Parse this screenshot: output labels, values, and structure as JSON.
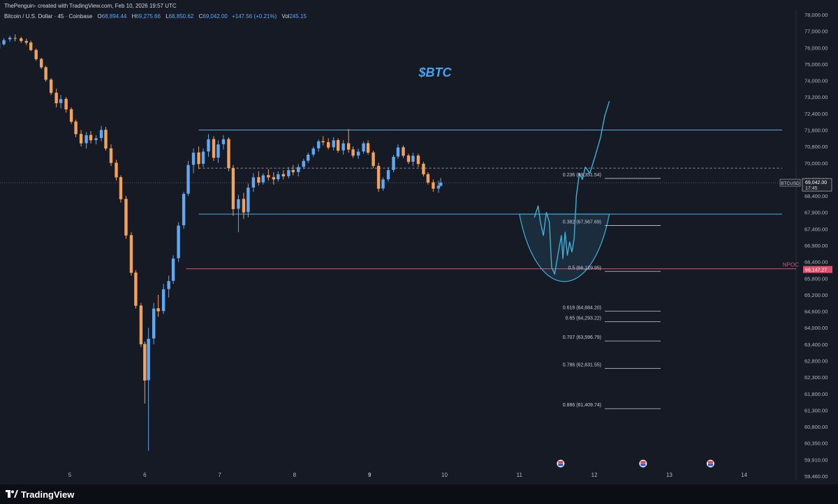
{
  "header": {
    "credit": "ThePenguin- created with TradingView.com, Feb 10, 2026 19:57 UTC",
    "symbol": "Bitcoin / U.S. Dollar · 45 · Coinbase",
    "open_label": "O",
    "open": "68,894.44",
    "high_label": "H",
    "high": "69,275.66",
    "low_label": "L",
    "low": "68,850.62",
    "close_label": "C",
    "close": "69,042.00",
    "change": "+147.56 (+0.21%)",
    "vol_label": "Vol",
    "vol": "245.15"
  },
  "footer": {
    "brand": "TradingView",
    "logo_icon": "tradingview-logo-icon"
  },
  "colors": {
    "background": "#161a25",
    "bull": "#5fa8f3",
    "bear": "#f2a25c",
    "range_line": "#5aa9d6",
    "npoc": "#e0506a",
    "fib_line": "#c9ccd4",
    "projection": "#3fb0d8",
    "title": "#4aa3f0"
  },
  "chart_data": {
    "type": "candlestick",
    "title": "$BTC",
    "timeframe": "45",
    "x_ticks": [
      "5",
      "6",
      "7",
      "8",
      "9",
      "10",
      "11",
      "12",
      "13",
      "14"
    ],
    "y_ticks": [
      "78,000.00",
      "77,000.00",
      "76,000.00",
      "75,000.00",
      "74,000.00",
      "73,200.00",
      "72,400.00",
      "71,600.00",
      "70,800.00",
      "70,000.00",
      "69,200.00",
      "68,400.00",
      "67,900.00",
      "67,400.00",
      "66,900.00",
      "66,400.00",
      "65,800.00",
      "65,200.00",
      "64,600.00",
      "64,000.00",
      "63,400.00",
      "62,800.00",
      "62,300.00",
      "61,800.00",
      "61,300.00",
      "60,800.00",
      "60,350.00",
      "59,910.00",
      "59,460.00"
    ],
    "ylim": [
      59000,
      78000
    ],
    "candles_xrange": [
      4.05,
      9.95
    ],
    "candles": [
      [
        4.05,
        75930,
        76380,
        75850,
        76300
      ],
      [
        4.12,
        76200,
        76570,
        76120,
        76450
      ],
      [
        4.2,
        76500,
        76710,
        76350,
        76600
      ],
      [
        4.27,
        76580,
        76800,
        76380,
        76560
      ],
      [
        4.35,
        76560,
        76660,
        76280,
        76400
      ],
      [
        4.42,
        76400,
        76540,
        76150,
        76300
      ],
      [
        4.48,
        76310,
        76420,
        75780,
        75850
      ],
      [
        4.55,
        75860,
        75940,
        75200,
        75300
      ],
      [
        4.62,
        75310,
        75380,
        74700,
        74800
      ],
      [
        4.68,
        74810,
        74900,
        73950,
        74050
      ],
      [
        4.75,
        74060,
        74150,
        73300,
        73400
      ],
      [
        4.82,
        73410,
        73600,
        72700,
        72900
      ],
      [
        4.88,
        72910,
        73300,
        72650,
        73100
      ],
      [
        4.95,
        73110,
        73200,
        72450,
        72600
      ],
      [
        5.02,
        72610,
        72700,
        71900,
        72000
      ],
      [
        5.08,
        72010,
        72100,
        71250,
        71400
      ],
      [
        5.15,
        71410,
        71600,
        70800,
        70950
      ],
      [
        5.22,
        70960,
        71500,
        70700,
        71350
      ],
      [
        5.28,
        71360,
        71550,
        70950,
        71100
      ],
      [
        5.35,
        71110,
        71350,
        70900,
        71200
      ],
      [
        5.42,
        71210,
        71800,
        71050,
        71600
      ],
      [
        5.48,
        71610,
        71750,
        70600,
        70700
      ],
      [
        5.55,
        70710,
        70900,
        69850,
        70000
      ],
      [
        5.62,
        70010,
        70150,
        69150,
        69300
      ],
      [
        5.68,
        69310,
        69400,
        68200,
        68300
      ],
      [
        5.75,
        68310,
        68400,
        67100,
        67200
      ],
      [
        5.82,
        67210,
        67300,
        65900,
        66000
      ],
      [
        5.88,
        66010,
        66100,
        64700,
        64800
      ],
      [
        5.95,
        64810,
        64900,
        63300,
        63400
      ],
      [
        6.0,
        63410,
        63500,
        61500,
        62200
      ],
      [
        6.05,
        62210,
        64000,
        60150,
        63600
      ],
      [
        6.12,
        63610,
        64900,
        63400,
        64700
      ],
      [
        6.18,
        64710,
        65200,
        64400,
        64600
      ],
      [
        6.25,
        64610,
        65600,
        64500,
        65400
      ],
      [
        6.32,
        65410,
        65900,
        65100,
        65700
      ],
      [
        6.38,
        65710,
        66600,
        65600,
        66500
      ],
      [
        6.45,
        66510,
        67600,
        66400,
        67500
      ],
      [
        6.52,
        67510,
        68600,
        67400,
        68500
      ],
      [
        6.58,
        68510,
        70100,
        68400,
        69900
      ],
      [
        6.65,
        69910,
        70700,
        69500,
        70500
      ],
      [
        6.72,
        70510,
        70800,
        69700,
        69950
      ],
      [
        6.78,
        69960,
        70700,
        69800,
        70550
      ],
      [
        6.85,
        70560,
        71400,
        70300,
        71150
      ],
      [
        6.92,
        71160,
        71300,
        70100,
        70250
      ],
      [
        6.98,
        70260,
        71100,
        70000,
        70900
      ],
      [
        7.05,
        70910,
        71350,
        70650,
        71150
      ],
      [
        7.12,
        71160,
        71250,
        69600,
        69750
      ],
      [
        7.18,
        69760,
        69900,
        67800,
        68000
      ],
      [
        7.25,
        68010,
        68450,
        67300,
        68300
      ],
      [
        7.32,
        68310,
        68550,
        67700,
        67900
      ],
      [
        7.38,
        67910,
        69000,
        67750,
        68800
      ],
      [
        7.45,
        68810,
        69500,
        68600,
        69300
      ],
      [
        7.52,
        69310,
        69600,
        68900,
        69050
      ],
      [
        7.58,
        69060,
        69500,
        68950,
        69400
      ],
      [
        7.65,
        69410,
        69700,
        69150,
        69300
      ],
      [
        7.72,
        69310,
        69550,
        68950,
        69200
      ],
      [
        7.78,
        69210,
        69600,
        69100,
        69450
      ],
      [
        7.85,
        69460,
        69650,
        69200,
        69350
      ],
      [
        7.92,
        69360,
        69800,
        69250,
        69650
      ],
      [
        7.98,
        69660,
        69900,
        69400,
        69550
      ],
      [
        8.05,
        69560,
        69950,
        69350,
        69800
      ],
      [
        8.12,
        69810,
        70200,
        69700,
        70100
      ],
      [
        8.18,
        70110,
        70500,
        70000,
        70400
      ],
      [
        8.25,
        70410,
        70800,
        70300,
        70700
      ],
      [
        8.32,
        70710,
        71150,
        70550,
        71050
      ],
      [
        8.38,
        71060,
        71300,
        70850,
        71000
      ],
      [
        8.45,
        71010,
        71200,
        70650,
        70750
      ],
      [
        8.52,
        70760,
        71250,
        70600,
        71100
      ],
      [
        8.58,
        71110,
        71200,
        70500,
        70600
      ],
      [
        8.65,
        70610,
        71100,
        70400,
        70950
      ],
      [
        8.72,
        70960,
        71650,
        70500,
        70650
      ],
      [
        8.78,
        70660,
        70800,
        70250,
        70350
      ],
      [
        8.85,
        70360,
        70700,
        70200,
        70550
      ],
      [
        8.92,
        70560,
        71050,
        70450,
        70950
      ],
      [
        8.98,
        70960,
        71100,
        70400,
        70500
      ],
      [
        9.05,
        70510,
        70600,
        69750,
        69850
      ],
      [
        9.12,
        69860,
        70000,
        68600,
        68750
      ],
      [
        9.18,
        68760,
        69300,
        68650,
        69200
      ],
      [
        9.25,
        69210,
        69800,
        69100,
        69650
      ],
      [
        9.32,
        69660,
        70400,
        69550,
        70300
      ],
      [
        9.38,
        70310,
        70900,
        70200,
        70750
      ],
      [
        9.45,
        70760,
        70850,
        70250,
        70350
      ],
      [
        9.52,
        70360,
        70450,
        69950,
        70050
      ],
      [
        9.58,
        70060,
        70500,
        69850,
        70350
      ],
      [
        9.65,
        70360,
        70450,
        69800,
        69950
      ],
      [
        9.72,
        69960,
        70050,
        69350,
        69450
      ],
      [
        9.78,
        69460,
        69550,
        68950,
        69050
      ],
      [
        9.85,
        69060,
        69200,
        68600,
        68750
      ],
      [
        9.92,
        68760,
        69150,
        68550,
        68900
      ],
      [
        9.95,
        68894.44,
        69275.66,
        68850.62,
        69042.0
      ]
    ],
    "range_lines": [
      71600,
      67850
    ],
    "dashed_level": 69750,
    "price_tag": {
      "symbol": "BTCUSD",
      "price": "69,042.00",
      "countdown": "17:45",
      "value": 69042
    },
    "npoc": {
      "label": "NPOC",
      "price": "66,147.27",
      "value": 66147.27
    },
    "fib_levels": [
      {
        "label": "0.236 (69,351.54)",
        "value": 69351.54
      },
      {
        "label": "0.382 (67,567.69)",
        "value": 67567.69
      },
      {
        "label": "0.5 (66,129.95)",
        "value": 66129.95
      },
      {
        "label": "0.618 (64,684.20)",
        "value": 64684.2
      },
      {
        "label": "0.65 (64,293.22)",
        "value": 64293.22
      },
      {
        "label": "0.707 (63,596.79)",
        "value": 63596.79
      },
      {
        "label": "0.786 (62,631.55)",
        "value": 62631.55
      },
      {
        "label": "0.886 (61,409.74)",
        "value": 61409.74
      }
    ],
    "projection_path": [
      [
        11.2,
        67750
      ],
      [
        11.25,
        68100
      ],
      [
        11.28,
        67600
      ],
      [
        11.32,
        67200
      ],
      [
        11.36,
        67900
      ],
      [
        11.4,
        67600
      ],
      [
        11.43,
        66200
      ],
      [
        11.47,
        65950
      ],
      [
        11.52,
        66700
      ],
      [
        11.56,
        67200
      ],
      [
        11.58,
        66500
      ],
      [
        11.61,
        67300
      ],
      [
        11.64,
        66600
      ],
      [
        11.67,
        67000
      ],
      [
        11.7,
        66700
      ],
      [
        11.73,
        67100
      ],
      [
        11.76,
        68400
      ],
      [
        11.8,
        69500
      ],
      [
        11.84,
        69200
      ],
      [
        11.88,
        69800
      ],
      [
        11.94,
        69500
      ],
      [
        12.0,
        70200
      ],
      [
        12.08,
        71200
      ],
      [
        12.14,
        72300
      ],
      [
        12.2,
        73000
      ]
    ],
    "projection_arc": {
      "x_start": 11.0,
      "x_end": 12.2,
      "x_bottom": 11.55,
      "top": 67850,
      "bottom": 65500
    },
    "calendar_icon_x": [
      11.55,
      12.65,
      13.55
    ]
  }
}
